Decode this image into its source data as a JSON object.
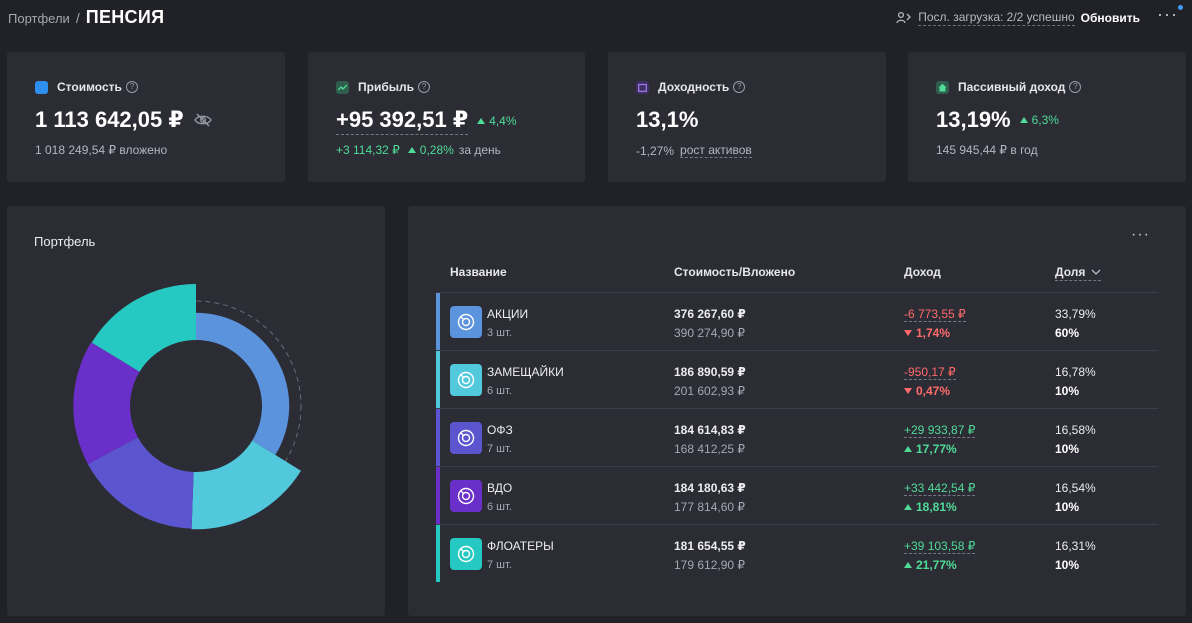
{
  "header": {
    "breadcrumb_link": "Портфели",
    "breadcrumb_sep": "/",
    "title": "ПЕНСИЯ",
    "status_text": "Посл. загрузка: 2/2 успешно",
    "refresh_label": "Обновить",
    "more_label": "···"
  },
  "cards": {
    "value": {
      "title": "Стоимость",
      "amount": "1 113 642,05 ₽",
      "sub": "1 018 249,54 ₽ вложено",
      "icon_color": "#2f8ff0"
    },
    "profit": {
      "title": "Прибыль",
      "amount": "+95 392,51 ₽",
      "change": "4,4%",
      "sub_amount": "+3 114,32 ₽",
      "sub_change": "0,28%",
      "sub_suffix": "за день",
      "icon_color": "#3fbf8a"
    },
    "yield": {
      "title": "Доходность",
      "amount": "13,1%",
      "sub_value": "-1,27%",
      "sub_label": "рост активов",
      "icon_color": "#8a63e0"
    },
    "passive": {
      "title": "Пассивный доход",
      "amount": "13,19%",
      "change": "6,3%",
      "sub": "145 945,44 ₽ в год",
      "icon_color": "#3fbf8a"
    }
  },
  "portfolio": {
    "title": "Портфель"
  },
  "table": {
    "more_label": "···",
    "columns": {
      "name": "Название",
      "value": "Стоимость/Вложено",
      "income": "Доход",
      "share": "Доля"
    },
    "rows": [
      {
        "name": "АКЦИИ",
        "count": "3 шт.",
        "value": "376 267,60 ₽",
        "invested": "390 274,90 ₽",
        "income": "-6 773,55 ₽",
        "income_pct": "1,74%",
        "trend": "down",
        "share": "33,79%",
        "target": "60%",
        "color": "#5b93dd"
      },
      {
        "name": "ЗАМЕЩАЙКИ",
        "count": "6 шт.",
        "value": "186 890,59 ₽",
        "invested": "201 602,93 ₽",
        "income": "-950,17 ₽",
        "income_pct": "0,47%",
        "trend": "down",
        "share": "16,78%",
        "target": "10%",
        "color": "#52c8dc"
      },
      {
        "name": "ОФЗ",
        "count": "7 шт.",
        "value": "184 614,83 ₽",
        "invested": "168 412,25 ₽",
        "income": "+29 933,87 ₽",
        "income_pct": "17,77%",
        "trend": "up",
        "share": "16,58%",
        "target": "10%",
        "color": "#5b55cf"
      },
      {
        "name": "ВДО",
        "count": "6 шт.",
        "value": "184 180,63 ₽",
        "invested": "177 814,60 ₽",
        "income": "+33 442,54 ₽",
        "income_pct": "18,81%",
        "trend": "up",
        "share": "16,54%",
        "target": "10%",
        "color": "#6a2fc8"
      },
      {
        "name": "ФЛОАТЕРЫ",
        "count": "7 шт.",
        "value": "181 654,55 ₽",
        "invested": "179 612,90 ₽",
        "income": "+39 103,58 ₽",
        "income_pct": "21,77%",
        "trend": "up",
        "share": "16,31%",
        "target": "10%",
        "color": "#26c9c1"
      }
    ]
  },
  "chart_data": {
    "type": "pie",
    "title": "Портфель",
    "categories": [
      "АКЦИИ",
      "ЗАМЕЩАЙКИ",
      "ОФЗ",
      "ВДО",
      "ФЛОАТЕРЫ"
    ],
    "values": [
      33.79,
      16.78,
      16.58,
      16.54,
      16.31
    ],
    "targets": [
      60,
      10,
      10,
      10,
      10
    ],
    "colors": [
      "#5b93dd",
      "#52c8dc",
      "#5b55cf",
      "#6a2fc8",
      "#26c9c1"
    ],
    "legend": "none"
  }
}
